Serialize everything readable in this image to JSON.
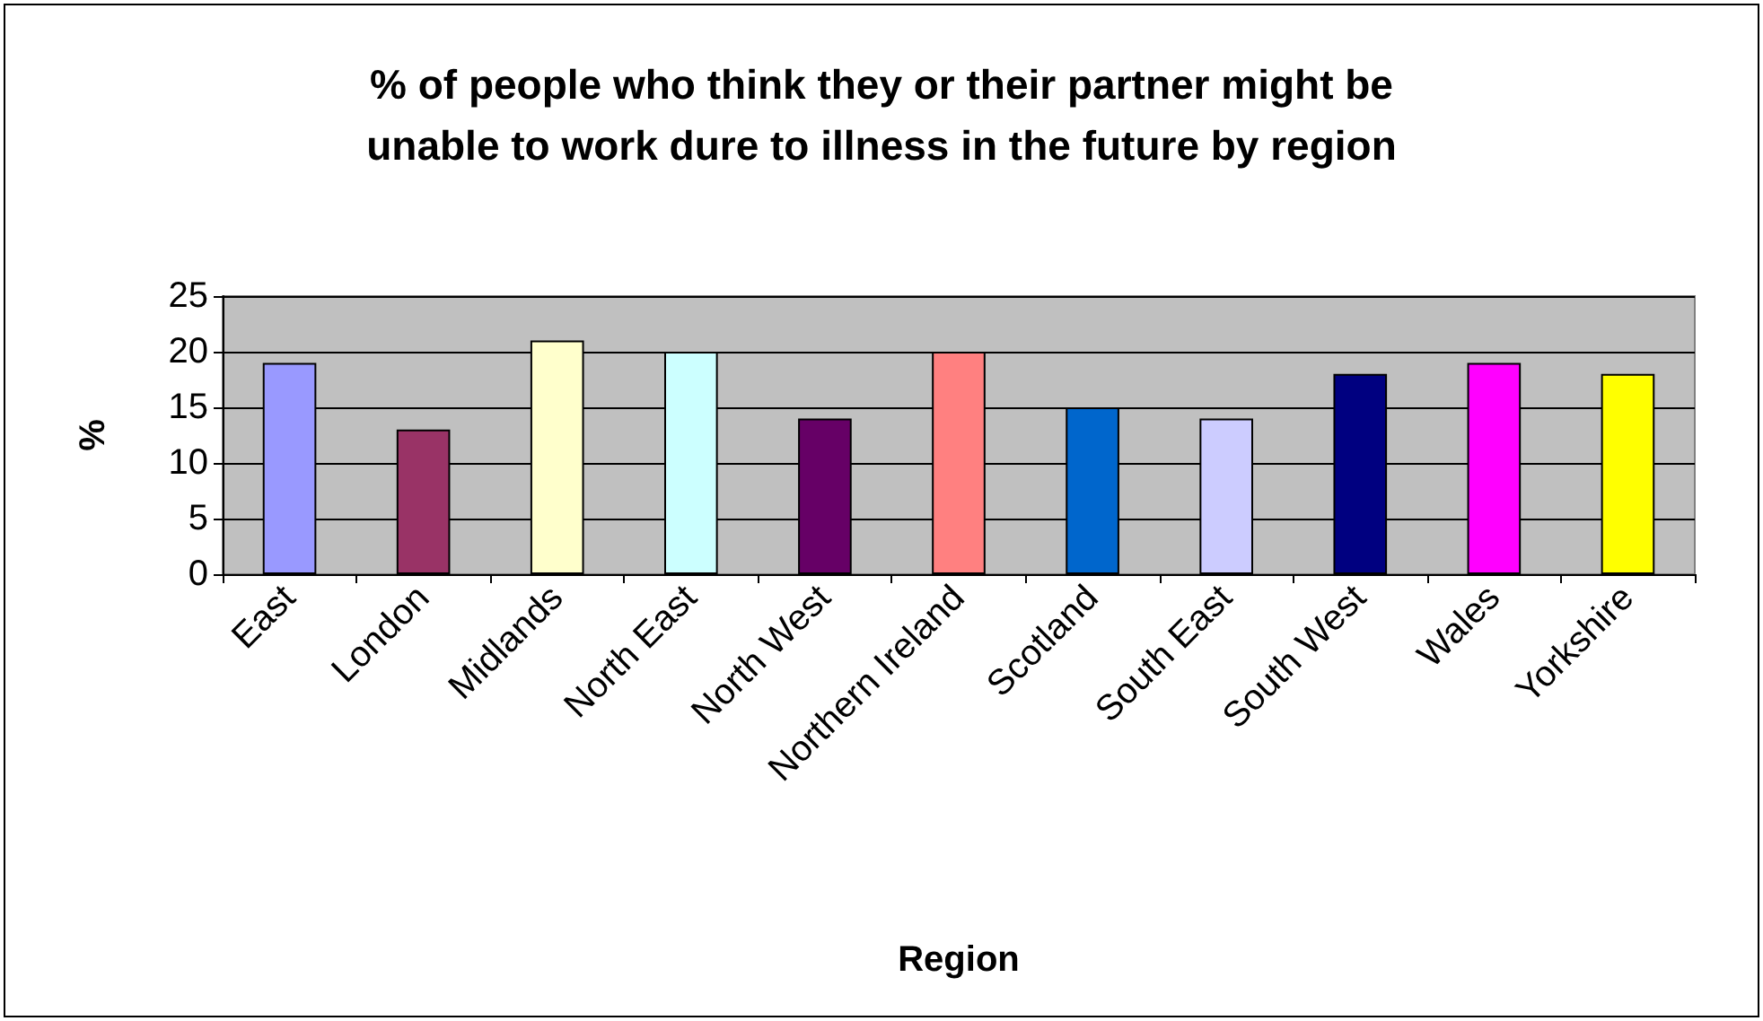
{
  "chart_data": {
    "type": "bar",
    "title": "% of people who think they or their partner might be\nunable to work dure to illness in the future by region",
    "xlabel": "Region",
    "ylabel": "%",
    "categories": [
      "East",
      "London",
      "Midlands",
      "North East",
      "North West",
      "Northern Ireland",
      "Scotland",
      "South East",
      "South West",
      "Wales",
      "Yorkshire"
    ],
    "values": [
      19,
      13,
      21,
      20,
      14,
      20,
      15,
      14,
      18,
      19,
      18
    ],
    "colors": [
      "#9999ff",
      "#993366",
      "#ffffcc",
      "#ccffff",
      "#660066",
      "#ff8080",
      "#0066cc",
      "#ccccff",
      "#000080",
      "#ff00ff",
      "#ffff00"
    ],
    "ylim": [
      0,
      25
    ],
    "yticks": [
      0,
      5,
      10,
      15,
      20,
      25
    ],
    "grid": "y"
  }
}
